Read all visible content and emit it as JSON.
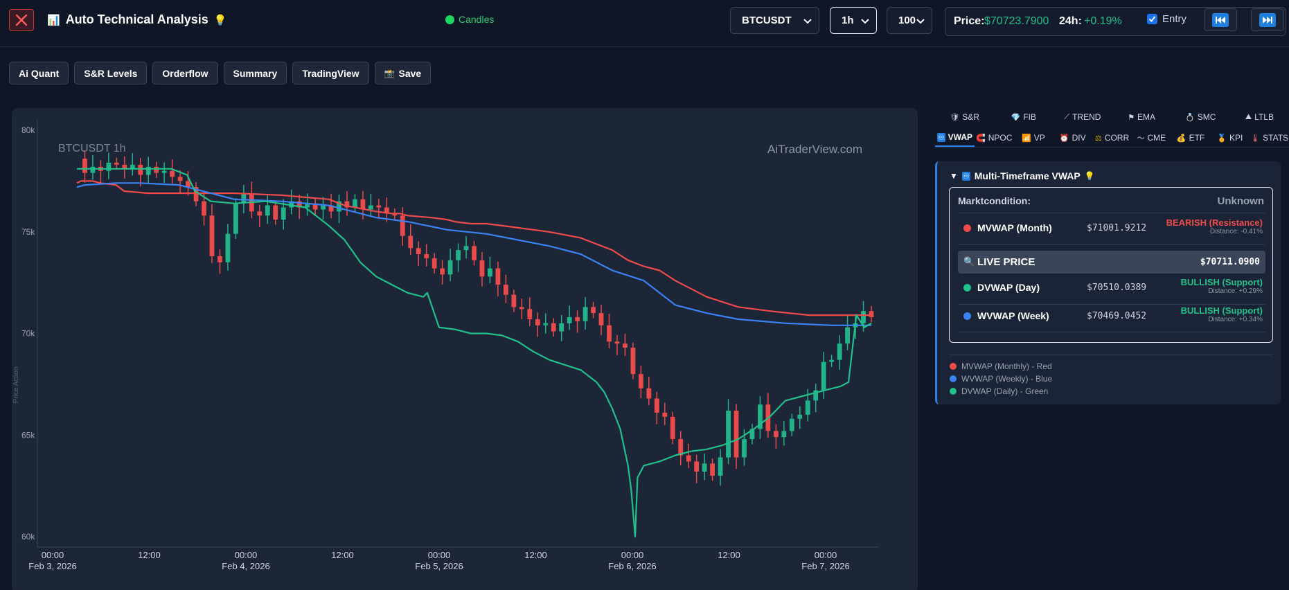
{
  "header": {
    "title": "Auto Technical Analysis",
    "title_icon": "bar-chart-icon",
    "title_suffix_icon": "lightbulb-icon",
    "mode_label": "Candles",
    "symbol": "BTCUSDT",
    "timeframe": "1h",
    "candle_count": "100",
    "price_label": "Price:",
    "price_value": "$70723.7900",
    "change_label": "24h:",
    "change_value": "+0.19%",
    "entry_label": "Entry",
    "entry_checked": true
  },
  "toolbar": {
    "buttons": [
      "Ai Quant",
      "S&R Levels",
      "Orderflow",
      "Summary",
      "TradingView",
      "Save"
    ],
    "save_icon": "camera-icon"
  },
  "chart": {
    "watermark_left": "BTCUSDT 1h",
    "watermark_right": "AiTraderView.com",
    "y_axis_title": "Price Action",
    "y_ticks": [
      "80k",
      "75k",
      "70k",
      "65k",
      "60k"
    ],
    "x_ticks": [
      {
        "time": "00:00",
        "date": "Feb 3, 2026"
      },
      {
        "time": "12:00",
        "date": ""
      },
      {
        "time": "00:00",
        "date": "Feb 4, 2026"
      },
      {
        "time": "12:00",
        "date": ""
      },
      {
        "time": "00:00",
        "date": "Feb 5, 2026"
      },
      {
        "time": "12:00",
        "date": ""
      },
      {
        "time": "00:00",
        "date": "Feb 6, 2026"
      },
      {
        "time": "12:00",
        "date": ""
      },
      {
        "time": "00:00",
        "date": "Feb 7, 2026"
      }
    ]
  },
  "chart_data": {
    "type": "line",
    "candles_close": [
      78600,
      77900,
      78200,
      78000,
      78400,
      78300,
      78100,
      78300,
      77800,
      78200,
      77900,
      78000,
      77700,
      77500,
      77200,
      76500,
      75800,
      73800,
      73500,
      74900,
      76400,
      76900,
      76000,
      75800,
      76300,
      75600,
      76200,
      76500,
      76200,
      76400,
      76100,
      76300,
      76000,
      76500,
      76200,
      76600,
      76100,
      76300,
      76200,
      75900,
      75800,
      74800,
      74200,
      73900,
      73700,
      73200,
      72900,
      73600,
      74100,
      74300,
      73600,
      72800,
      73200,
      72400,
      71900,
      71300,
      71200,
      70700,
      70400,
      70500,
      70100,
      70500,
      70800,
      70600,
      71300,
      71000,
      70400,
      69600,
      69500,
      69300,
      68000,
      67300,
      66800,
      66100,
      65900,
      64800,
      64000,
      63700,
      63200,
      63600,
      63000,
      63900,
      66200,
      63900,
      64800,
      65300,
      66500,
      65200,
      64900,
      65200,
      65800,
      66000,
      66700,
      67200,
      68600,
      68700,
      69500,
      70300,
      70500,
      71100,
      70800
    ],
    "series": [
      {
        "name": "MVWAP (Monthly) - Red",
        "color": "#ef4b4b",
        "x": [
          0,
          5,
          20,
          30,
          50,
          60,
          90,
          110,
          130,
          200,
          260,
          290,
          320,
          340,
          380,
          400,
          410,
          420,
          450,
          470,
          480,
          500,
          520,
          540,
          560,
          600,
          640,
          680,
          700,
          720,
          740,
          760,
          800,
          840,
          880,
          930,
          960,
          990,
          1009
        ],
        "values": [
          77400,
          77500,
          77500,
          77400,
          77300,
          77000,
          76900,
          76900,
          76900,
          76900,
          76800,
          76700,
          76600,
          76300,
          76000,
          75900,
          75900,
          75800,
          75700,
          75600,
          75500,
          75400,
          75400,
          75300,
          75200,
          75000,
          74700,
          74100,
          73600,
          73300,
          73100,
          72600,
          71800,
          71300,
          71100,
          70900,
          70900,
          70900,
          70900
        ]
      },
      {
        "name": "WVWAP (Weekly) - Blue",
        "color": "#3b82f6",
        "x": [
          0,
          10,
          50,
          80,
          130,
          200,
          260,
          320,
          380,
          420,
          470,
          520,
          560,
          600,
          640,
          680,
          720,
          760,
          800,
          840,
          900,
          960,
          1000,
          1009
        ],
        "values": [
          77200,
          77300,
          77400,
          77400,
          77300,
          76600,
          76500,
          76300,
          75700,
          75500,
          75100,
          74900,
          74600,
          74300,
          73900,
          73100,
          72600,
          71400,
          71000,
          70700,
          70500,
          70400,
          70400,
          70400
        ]
      },
      {
        "name": "DVWAP (Daily) - Green",
        "color": "#22c08a",
        "x": [
          0,
          60,
          120,
          140,
          150,
          170,
          200,
          240,
          290,
          320,
          340,
          360,
          380,
          400,
          420,
          440,
          445,
          460,
          480,
          500,
          520,
          540,
          560,
          580,
          600,
          640,
          660,
          670,
          680,
          690,
          700,
          704,
          709,
          712,
          716,
          720,
          740,
          760,
          780,
          800,
          820,
          840,
          860,
          880,
          900,
          920,
          940,
          950,
          960,
          970,
          980,
          990,
          1000,
          1009
        ],
        "values": [
          78100,
          78100,
          78100,
          77800,
          77000,
          76500,
          76400,
          76500,
          76200,
          75300,
          74600,
          73500,
          72800,
          72400,
          72000,
          71800,
          72000,
          70300,
          70200,
          70000,
          70000,
          69900,
          69600,
          69100,
          68700,
          68200,
          67600,
          67100,
          66300,
          65300,
          63500,
          62300,
          60000,
          62900,
          63200,
          63500,
          63700,
          64000,
          64200,
          64300,
          64500,
          64800,
          65300,
          65900,
          66700,
          66900,
          67100,
          67200,
          67300,
          67400,
          67600,
          70900,
          70300,
          70500
        ]
      }
    ],
    "ylim": [
      60000,
      80000
    ],
    "ylabel": "Price Action"
  },
  "right_panel": {
    "tabs_row1": [
      {
        "label": "S&R",
        "icon": "shield-icon"
      },
      {
        "label": "FIB",
        "icon": "diamond-icon"
      },
      {
        "label": "TREND",
        "icon": "trend-line-icon"
      },
      {
        "label": "EMA",
        "icon": "flag-icon"
      },
      {
        "label": "SMC",
        "icon": "ring-icon"
      },
      {
        "label": "LTLB",
        "icon": "mountain-icon"
      }
    ],
    "tabs_row2": [
      {
        "label": "VWAP",
        "icon": "infinity-icon"
      },
      {
        "label": "NPOC",
        "icon": "magnet-icon"
      },
      {
        "label": "VP",
        "icon": "volume-icon"
      },
      {
        "label": "DIV",
        "icon": "alarm-icon"
      },
      {
        "label": "CORR",
        "icon": "scale-icon"
      },
      {
        "label": "CME",
        "icon": "wave-icon"
      },
      {
        "label": "ETF",
        "icon": "bag-icon"
      },
      {
        "label": "KPI",
        "icon": "medal-icon"
      },
      {
        "label": "STATS",
        "icon": "thermometer-icon"
      }
    ],
    "vwap": {
      "title": "Multi-Timeframe VWAP",
      "market_label": "Marktcondition:",
      "market_value": "Unknown",
      "rows": [
        {
          "name": "MVWAP (Month)",
          "value": "$71001.9212",
          "signal": "BEARISH (Resistance)",
          "distance": "Distance: -0.41%",
          "color": "#ef4b4b",
          "signal_color": "#ef4b4b"
        },
        {
          "name": "DVWAP (Day)",
          "value": "$70510.0389",
          "signal": "BULLISH (Support)",
          "distance": "Distance: +0.29%",
          "color": "#22c08a",
          "signal_color": "#22c08a"
        },
        {
          "name": "WVWAP (Week)",
          "value": "$70469.0452",
          "signal": "BULLISH (Support)",
          "distance": "Distance: +0.34%",
          "color": "#3b82f6",
          "signal_color": "#22c08a"
        }
      ],
      "live_label": "LIVE PRICE",
      "live_value": "$70711.0900",
      "legend": [
        "MVWAP (Monthly) - Red",
        "WVWAP (Weekly) - Blue",
        "DVWAP (Daily) - Green"
      ]
    }
  }
}
